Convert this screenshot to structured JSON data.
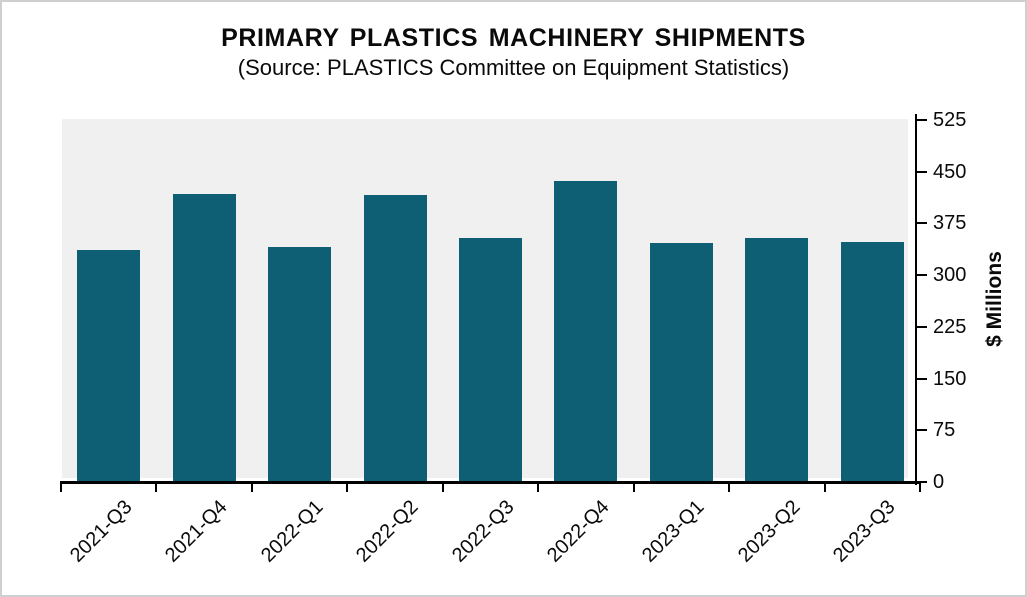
{
  "chart_data": {
    "type": "bar",
    "title": "PRIMARY PLASTICS MACHINERY SHIPMENTS",
    "subtitle": "(Source: PLASTICS Committee on Equipment Statistics)",
    "ylabel": "$ Millions",
    "xlabel": "",
    "categories": [
      "2021-Q3",
      "2021-Q4",
      "2022-Q1",
      "2022-Q2",
      "2022-Q3",
      "2022-Q4",
      "2023-Q1",
      "2023-Q2",
      "2023-Q3"
    ],
    "values": [
      336,
      418,
      341,
      416,
      354,
      436,
      347,
      354,
      348
    ],
    "yticks": [
      0,
      75,
      150,
      225,
      300,
      375,
      450,
      525
    ],
    "ylim": [
      0,
      525
    ],
    "legend_position": "none",
    "grid": "off",
    "bar_color": "#0e5e74",
    "plot_bg_color": "#f0f0f1",
    "axis_color": "#000000"
  }
}
